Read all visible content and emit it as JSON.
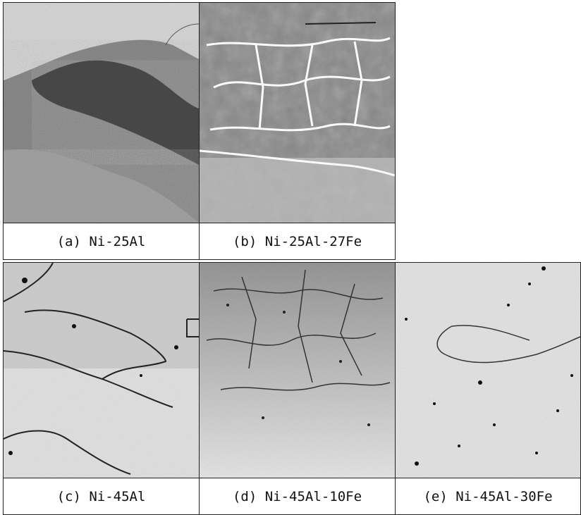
{
  "panels": [
    {
      "caption": "(a) Ni-25Al"
    },
    {
      "caption": "(b) Ni-25Al-27Fe"
    },
    {
      "caption": "(c) Ni-45Al"
    },
    {
      "caption": "(d) Ni-45Al-10Fe"
    },
    {
      "caption": "(e) Ni-45Al-30Fe"
    }
  ]
}
